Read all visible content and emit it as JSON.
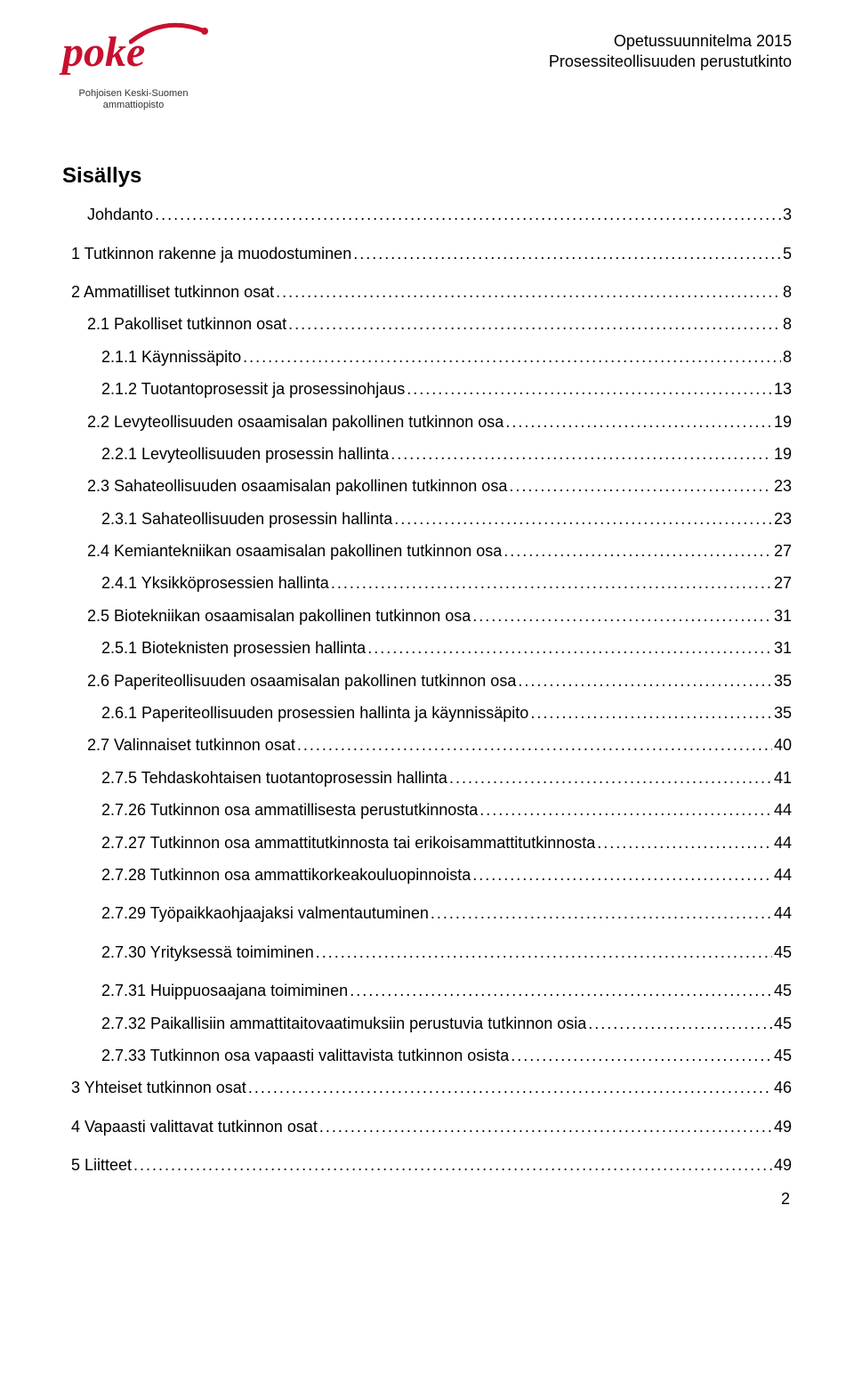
{
  "header": {
    "logo_text": "poke",
    "logo_subtitle_line1": "Pohjoisen Keski-Suomen",
    "logo_subtitle_line2": "ammattiopisto",
    "right_line1": "Opetussuunnitelma 2015",
    "right_line2": "Prosessiteollisuuden perustutkinto"
  },
  "toc_title": "Sisällys",
  "toc": [
    {
      "label": "Johdanto",
      "page": "3",
      "level": 1,
      "gap": false
    },
    {
      "label": "1 Tutkinnon rakenne ja muodostuminen",
      "page": "5",
      "level": 0,
      "gap": true
    },
    {
      "label": "2 Ammatilliset tutkinnon osat",
      "page": "8",
      "level": 0,
      "gap": true
    },
    {
      "label": "2.1 Pakolliset tutkinnon osat",
      "page": "8",
      "level": 1,
      "gap": false
    },
    {
      "label": "2.1.1 Käynnissäpito",
      "page": "8",
      "level": 2,
      "gap": false
    },
    {
      "label": "2.1.2 Tuotantoprosessit ja prosessinohjaus",
      "page": "13",
      "level": 2,
      "gap": false
    },
    {
      "label": "2.2 Levyteollisuuden osaamisalan pakollinen tutkinnon osa",
      "page": "19",
      "level": 1,
      "gap": false
    },
    {
      "label": "2.2.1 Levyteollisuuden prosessin hallinta",
      "page": "19",
      "level": 2,
      "gap": false
    },
    {
      "label": "2.3 Sahateollisuuden osaamisalan pakollinen tutkinnon osa",
      "page": "23",
      "level": 1,
      "gap": false
    },
    {
      "label": "2.3.1 Sahateollisuuden prosessin hallinta",
      "page": "23",
      "level": 2,
      "gap": false
    },
    {
      "label": "2.4 Kemiantekniikan osaamisalan pakollinen tutkinnon osa",
      "page": "27",
      "level": 1,
      "gap": false
    },
    {
      "label": "2.4.1 Yksikköprosessien hallinta",
      "page": "27",
      "level": 2,
      "gap": false
    },
    {
      "label": "2.5 Biotekniikan osaamisalan pakollinen tutkinnon osa",
      "page": "31",
      "level": 1,
      "gap": false
    },
    {
      "label": "2.5.1 Bioteknisten prosessien hallinta",
      "page": "31",
      "level": 2,
      "gap": false
    },
    {
      "label": "2.6 Paperiteollisuuden osaamisalan pakollinen tutkinnon osa",
      "page": "35",
      "level": 1,
      "gap": false
    },
    {
      "label": "2.6.1 Paperiteollisuuden prosessien hallinta ja käynnissäpito",
      "page": "35",
      "level": 2,
      "gap": false
    },
    {
      "label": "2.7 Valinnaiset tutkinnon osat",
      "page": "40",
      "level": 1,
      "gap": false
    },
    {
      "label": "2.7.5 Tehdaskohtaisen tuotantoprosessin hallinta",
      "page": "41",
      "level": 2,
      "gap": false
    },
    {
      "label": "2.7.26 Tutkinnon osa ammatillisesta perustutkinnosta",
      "page": "44",
      "level": 2,
      "gap": false
    },
    {
      "label": "2.7.27 Tutkinnon osa ammattitutkinnosta tai erikoisammattitutkinnosta",
      "page": "44",
      "level": 2,
      "gap": false
    },
    {
      "label": "2.7.28 Tutkinnon osa ammattikorkeakouluopinnoista",
      "page": "44",
      "level": 2,
      "gap": false
    },
    {
      "label": "2.7.29 Työpaikkaohjaajaksi valmentautuminen",
      "page": "44",
      "level": 2,
      "gap": true
    },
    {
      "label": "2.7.30 Yrityksessä toimiminen",
      "page": "45",
      "level": 2,
      "gap": true
    },
    {
      "label": "2.7.31 Huippuosaajana toimiminen",
      "page": "45",
      "level": 2,
      "gap": true
    },
    {
      "label": "2.7.32 Paikallisiin ammattitaitovaatimuksiin perustuvia tutkinnon osia",
      "page": "45",
      "level": 2,
      "gap": false
    },
    {
      "label": "2.7.33 Tutkinnon osa vapaasti valittavista tutkinnon osista",
      "page": "45",
      "level": 2,
      "gap": false
    },
    {
      "label": "3 Yhteiset tutkinnon osat",
      "page": "46",
      "level": 0,
      "gap": false
    },
    {
      "label": "4 Vapaasti valittavat tutkinnon osat",
      "page": "49",
      "level": 0,
      "gap": true
    },
    {
      "label": "5 Liitteet",
      "page": "49",
      "level": 0,
      "gap": true
    }
  ],
  "page_number": "2"
}
